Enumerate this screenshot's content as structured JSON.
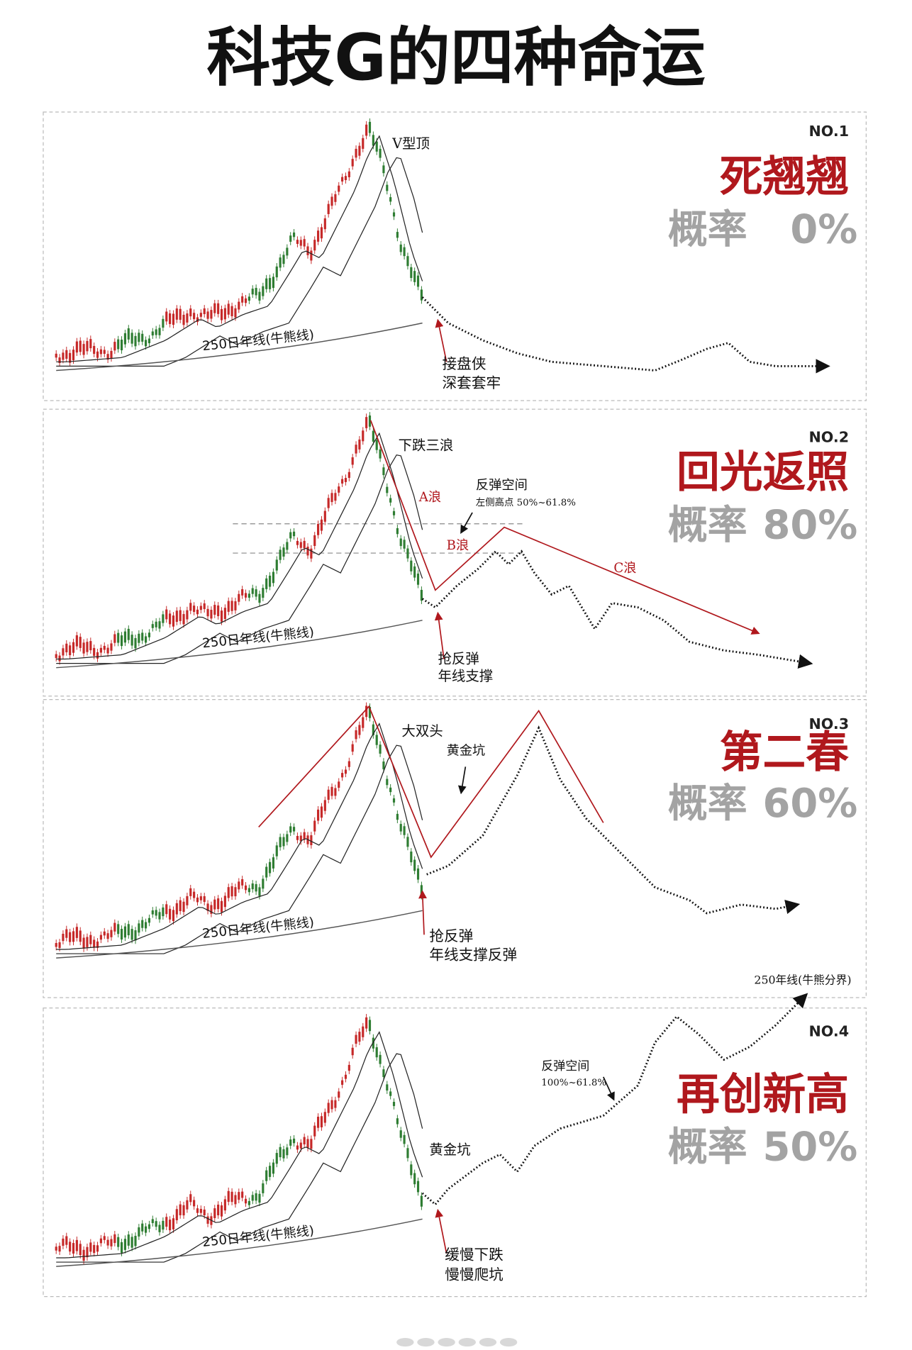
{
  "title": "科技G的四种命运",
  "panels": [
    {
      "number": "NO.1",
      "name": "死翘翘",
      "probability_label": "概率",
      "probability": "0%",
      "year_line": "250日年线(牛熊线)",
      "annotations": [
        "V型顶",
        "接盘侠",
        "深套套牢"
      ]
    },
    {
      "number": "NO.2",
      "name": "回光返照",
      "probability_label": "概率",
      "probability": "80%",
      "year_line": "250日年线(牛熊线)",
      "annotations": [
        "下跌三浪",
        "A浪",
        "B浪",
        "C浪",
        "反弹空间",
        "左侧高点 50%~61.8%",
        "抢反弹",
        "年线支撑"
      ]
    },
    {
      "number": "NO.3",
      "name": "第二春",
      "probability_label": "概率",
      "probability": "60%",
      "year_line": "250日年线(牛熊线)",
      "annotations": [
        "大双头",
        "黄金坑",
        "抢反弹",
        "年线支撑反弹"
      ]
    },
    {
      "number": "NO.4",
      "name": "再创新高",
      "probability_label": "概率",
      "probability": "50%",
      "year_line": "250日年线(牛熊线)",
      "annotations": [
        "黄金坑",
        "反弹空间",
        "100%~61.8%",
        "缓慢下跌",
        "慢慢爬坑",
        "250年线(牛熊分界)"
      ]
    }
  ]
}
